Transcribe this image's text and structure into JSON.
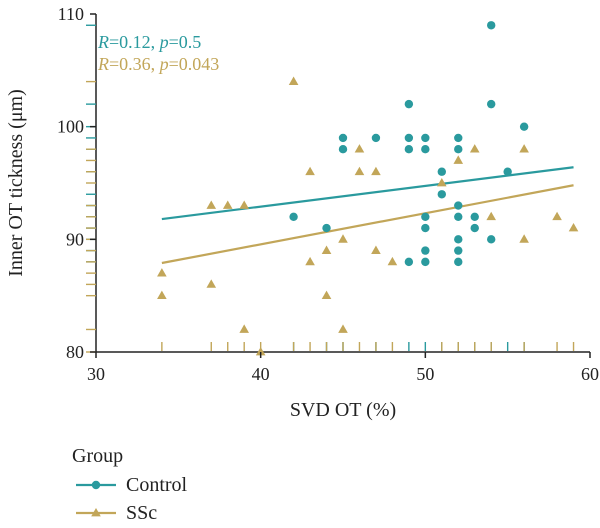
{
  "chart_data": {
    "type": "scatter",
    "xlabel": "SVD OT (%)",
    "ylabel": "Inner OT tickness (μm)",
    "xlim": [
      30,
      60
    ],
    "ylim": [
      80,
      110
    ],
    "xticks": [
      "30",
      "40",
      "50",
      "60"
    ],
    "yticks": [
      "80",
      "90",
      "100",
      "110"
    ],
    "grid": false,
    "legend_title": "Group",
    "legend_position": "bottom-left",
    "series": [
      {
        "name": "Control",
        "marker": "circle",
        "color": "#2a9a9e",
        "stat_r_label": "R",
        "stat_r_value": "=0.12, ",
        "stat_p_label": "p",
        "stat_p_value": "=0.5",
        "fit": [
          [
            34,
            91.8
          ],
          [
            59,
            96.4
          ]
        ],
        "points": [
          [
            42,
            92
          ],
          [
            44,
            91
          ],
          [
            45,
            99
          ],
          [
            45,
            98
          ],
          [
            47,
            99
          ],
          [
            49,
            102
          ],
          [
            49,
            99
          ],
          [
            49,
            98
          ],
          [
            49,
            88
          ],
          [
            50,
            99
          ],
          [
            50,
            98
          ],
          [
            50,
            92
          ],
          [
            50,
            91
          ],
          [
            50,
            89
          ],
          [
            50,
            88
          ],
          [
            51,
            96
          ],
          [
            51,
            94
          ],
          [
            52,
            99
          ],
          [
            52,
            98
          ],
          [
            52,
            93
          ],
          [
            52,
            92
          ],
          [
            52,
            90
          ],
          [
            52,
            89
          ],
          [
            52,
            88
          ],
          [
            53,
            92
          ],
          [
            53,
            91
          ],
          [
            54,
            109
          ],
          [
            54,
            102
          ],
          [
            54,
            90
          ],
          [
            55,
            96
          ],
          [
            56,
            100
          ]
        ]
      },
      {
        "name": "SSc",
        "marker": "triangle",
        "color": "#c2a659",
        "stat_r_label": "R",
        "stat_r_value": "=0.36, ",
        "stat_p_label": "p",
        "stat_p_value": "=0.043",
        "fit": [
          [
            34,
            87.9
          ],
          [
            59,
            94.8
          ]
        ],
        "points": [
          [
            34,
            87
          ],
          [
            34,
            85
          ],
          [
            37,
            93
          ],
          [
            37,
            86
          ],
          [
            38,
            93
          ],
          [
            39,
            93
          ],
          [
            39,
            82
          ],
          [
            40,
            80
          ],
          [
            42,
            104
          ],
          [
            43,
            96
          ],
          [
            43,
            88
          ],
          [
            44,
            89
          ],
          [
            44,
            85
          ],
          [
            45,
            90
          ],
          [
            45,
            82
          ],
          [
            46,
            98
          ],
          [
            46,
            96
          ],
          [
            47,
            96
          ],
          [
            47,
            89
          ],
          [
            48,
            88
          ],
          [
            51,
            95
          ],
          [
            52,
            97
          ],
          [
            53,
            98
          ],
          [
            54,
            92
          ],
          [
            56,
            98
          ],
          [
            56,
            90
          ],
          [
            58,
            92
          ],
          [
            59,
            91
          ]
        ]
      }
    ]
  }
}
